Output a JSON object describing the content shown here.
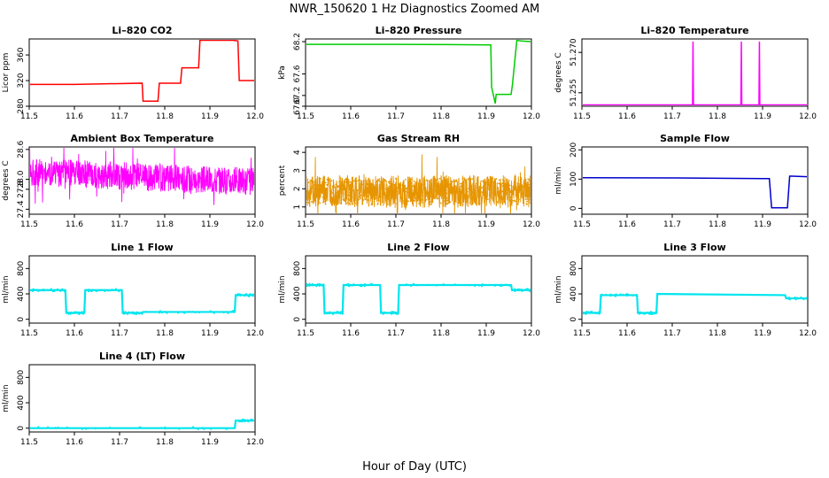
{
  "title": "NWR_150620  1 Hz Diagnostics Zoomed AM",
  "xlabel": "Hour of Day (UTC)",
  "chart_data": [
    {
      "type": "line",
      "title": "Li–820 CO2",
      "ylabel": "Licor ppm",
      "color": "#ff0000",
      "xlim": [
        11.5,
        12.0
      ],
      "ylim": [
        280,
        385
      ],
      "xticks": [
        11.5,
        11.6,
        11.7,
        11.8,
        11.9,
        12.0
      ],
      "xtick_labels": [
        "11.5",
        "11.6",
        "11.7",
        "11.8",
        "11.9",
        "12.0"
      ],
      "yticks": [
        280,
        320,
        360
      ],
      "ytick_labels": [
        "280",
        "320",
        "360"
      ],
      "series": [
        {
          "x": [
            11.5,
            11.6,
            11.75,
            11.752,
            11.785,
            11.788,
            11.835,
            11.838,
            11.875,
            11.878,
            11.95,
            11.962,
            11.965,
            12.0
          ],
          "y": [
            314,
            314,
            316,
            288,
            288,
            316,
            316,
            340,
            340,
            383,
            383,
            382,
            320,
            320
          ]
        }
      ]
    },
    {
      "type": "line",
      "title": "Li–820 Pressure",
      "ylabel": "kPa",
      "color": "#00cc00",
      "xlim": [
        11.5,
        12.0
      ],
      "ylim": [
        67.0,
        68.25
      ],
      "xticks": [
        11.5,
        11.6,
        11.7,
        11.8,
        11.9,
        12.0
      ],
      "xtick_labels": [
        "11.5",
        "11.6",
        "11.7",
        "11.8",
        "11.9",
        "12.0"
      ],
      "yticks": [
        67.0,
        67.2,
        67.6,
        68.2
      ],
      "ytick_labels": [
        "67.0",
        "67.2",
        "67.6",
        "68.2"
      ],
      "series": [
        {
          "x": [
            11.5,
            11.7,
            11.91,
            11.912,
            11.92,
            11.922,
            11.955,
            11.958,
            11.968,
            11.97,
            11.98,
            12.0
          ],
          "y": [
            68.15,
            68.15,
            68.14,
            67.35,
            67.05,
            67.22,
            67.22,
            67.4,
            68.25,
            68.22,
            68.21,
            68.2
          ]
        }
      ]
    },
    {
      "type": "line",
      "title": "Li–820 Temperature",
      "ylabel": "degrees C",
      "color": "#ff00ff",
      "xlim": [
        11.5,
        12.0
      ],
      "ylim": [
        51.25,
        51.275
      ],
      "xticks": [
        11.5,
        11.6,
        11.7,
        11.8,
        11.9,
        12.0
      ],
      "xtick_labels": [
        "11.5",
        "11.6",
        "11.7",
        "11.8",
        "11.9",
        "12.0"
      ],
      "yticks": [
        51.255,
        51.27
      ],
      "ytick_labels": [
        "51.255",
        "51.270"
      ],
      "series": [
        {
          "x": [
            11.5,
            11.745,
            11.746,
            11.747,
            11.852,
            11.853,
            11.854,
            11.892,
            11.893,
            11.894,
            12.0
          ],
          "y": [
            51.2505,
            51.2505,
            51.274,
            51.2505,
            51.2505,
            51.274,
            51.2505,
            51.2505,
            51.274,
            51.2505,
            51.2505
          ]
        }
      ]
    },
    {
      "type": "line",
      "title": "Ambient Box Temperature",
      "ylabel": "degrees C",
      "color": "#ff00ff",
      "xlim": [
        11.5,
        12.0
      ],
      "ylim": [
        27.3,
        28.65
      ],
      "xticks": [
        11.5,
        11.6,
        11.7,
        11.8,
        11.9,
        12.0
      ],
      "xtick_labels": [
        "11.5",
        "11.6",
        "11.7",
        "11.8",
        "11.9",
        "12.0"
      ],
      "yticks": [
        27.4,
        27.8,
        28.0,
        28.6
      ],
      "ytick_labels": [
        "27.4",
        "27.8",
        "28.0",
        "28.6"
      ],
      "noise_band": {
        "center": [
          28.15,
          27.95
        ],
        "amplitude": 0.28
      },
      "series": [
        {
          "x": [
            11.5,
            12.0
          ],
          "y": [
            28.15,
            27.95
          ]
        }
      ]
    },
    {
      "type": "line",
      "title": "Gas Stream RH",
      "ylabel": "percent",
      "color": "#e69500",
      "xlim": [
        11.5,
        12.0
      ],
      "ylim": [
        0.6,
        4.3
      ],
      "xticks": [
        11.5,
        11.6,
        11.7,
        11.8,
        11.9,
        12.0
      ],
      "xtick_labels": [
        "11.5",
        "11.6",
        "11.7",
        "11.8",
        "11.9",
        "12.0"
      ],
      "yticks": [
        1,
        2,
        3,
        4
      ],
      "ytick_labels": [
        "1",
        "2",
        "3",
        "4"
      ],
      "noise_band": {
        "center": [
          1.85,
          1.85
        ],
        "amplitude": 0.9
      },
      "series": [
        {
          "x": [
            11.5,
            12.0
          ],
          "y": [
            1.85,
            1.85
          ]
        }
      ]
    },
    {
      "type": "line",
      "title": "Sample Flow",
      "ylabel": "ml/min",
      "color": "#0000cc",
      "xlim": [
        11.5,
        12.0
      ],
      "ylim": [
        -20,
        210
      ],
      "xticks": [
        11.5,
        11.6,
        11.7,
        11.8,
        11.9,
        12.0
      ],
      "xtick_labels": [
        "11.5",
        "11.6",
        "11.7",
        "11.8",
        "11.9",
        "12.0"
      ],
      "yticks": [
        0,
        100,
        200
      ],
      "ytick_labels": [
        "0",
        "100",
        "200"
      ],
      "series": [
        {
          "x": [
            11.5,
            11.7,
            11.9,
            11.915,
            11.92,
            11.955,
            11.96,
            11.965,
            12.0
          ],
          "y": [
            105,
            104,
            102,
            102,
            2,
            2,
            110,
            110,
            108
          ]
        }
      ]
    },
    {
      "type": "line",
      "title": "Line 1 Flow",
      "ylabel": "ml/min",
      "color": "#00e5ee",
      "xlim": [
        11.5,
        12.0
      ],
      "ylim": [
        -60,
        1000
      ],
      "xticks": [
        11.5,
        11.6,
        11.7,
        11.8,
        11.9,
        12.0
      ],
      "xtick_labels": [
        "11.5",
        "11.6",
        "11.7",
        "11.8",
        "11.9",
        "12.0"
      ],
      "yticks": [
        0,
        400,
        800
      ],
      "ytick_labels": [
        "0",
        "400",
        "800"
      ],
      "series": [
        {
          "x": [
            11.5,
            11.58,
            11.582,
            11.622,
            11.624,
            11.705,
            11.707,
            11.75,
            11.752,
            11.955,
            11.957,
            12.0
          ],
          "y": [
            460,
            460,
            100,
            100,
            460,
            460,
            100,
            100,
            115,
            115,
            380,
            380
          ]
        }
      ]
    },
    {
      "type": "line",
      "title": "Line 2 Flow",
      "ylabel": "ml/min",
      "color": "#00e5ee",
      "xlim": [
        11.5,
        12.0
      ],
      "ylim": [
        -60,
        1000
      ],
      "xticks": [
        11.5,
        11.6,
        11.7,
        11.8,
        11.9,
        12.0
      ],
      "xtick_labels": [
        "11.5",
        "11.6",
        "11.7",
        "11.8",
        "11.9",
        "12.0"
      ],
      "yticks": [
        0,
        400,
        800
      ],
      "ytick_labels": [
        "0",
        "400",
        "800"
      ],
      "series": [
        {
          "x": [
            11.5,
            11.54,
            11.542,
            11.582,
            11.584,
            11.665,
            11.667,
            11.705,
            11.707,
            11.955,
            11.957,
            12.0
          ],
          "y": [
            540,
            540,
            100,
            100,
            540,
            540,
            100,
            100,
            540,
            540,
            460,
            460
          ]
        }
      ]
    },
    {
      "type": "line",
      "title": "Line 3 Flow",
      "ylabel": "ml/min",
      "color": "#00e5ee",
      "xlim": [
        11.5,
        12.0
      ],
      "ylim": [
        -60,
        1000
      ],
      "xticks": [
        11.5,
        11.6,
        11.7,
        11.8,
        11.9,
        12.0
      ],
      "xtick_labels": [
        "11.5",
        "11.6",
        "11.7",
        "11.8",
        "11.9",
        "12.0"
      ],
      "yticks": [
        0,
        400,
        800
      ],
      "ytick_labels": [
        "0",
        "400",
        "800"
      ],
      "series": [
        {
          "x": [
            11.5,
            11.54,
            11.542,
            11.622,
            11.624,
            11.665,
            11.667,
            11.95,
            11.952,
            12.0
          ],
          "y": [
            100,
            100,
            380,
            380,
            100,
            100,
            400,
            380,
            330,
            330
          ]
        }
      ]
    },
    {
      "type": "line",
      "title": "Line 4 (LT) Flow",
      "ylabel": "ml/min",
      "color": "#00e5ee",
      "xlim": [
        11.5,
        12.0
      ],
      "ylim": [
        -60,
        1000
      ],
      "xticks": [
        11.5,
        11.6,
        11.7,
        11.8,
        11.9,
        12.0
      ],
      "xtick_labels": [
        "11.5",
        "11.6",
        "11.7",
        "11.8",
        "11.9",
        "12.0"
      ],
      "yticks": [
        0,
        400,
        800
      ],
      "ytick_labels": [
        "0",
        "400",
        "800"
      ],
      "series": [
        {
          "x": [
            11.5,
            11.955,
            11.957,
            12.0
          ],
          "y": [
            0,
            0,
            120,
            120
          ]
        }
      ]
    }
  ]
}
